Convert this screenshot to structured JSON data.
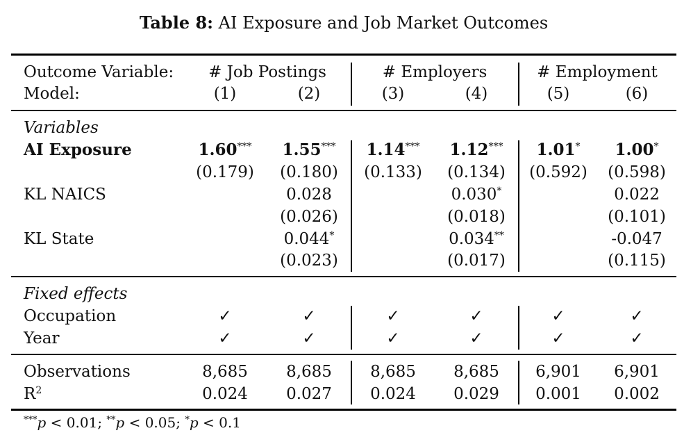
{
  "caption": {
    "label": "Table 8:",
    "text": "AI Exposure and Job Market Outcomes"
  },
  "header": {
    "outcome_label": "Outcome Variable:",
    "model_label": "Model:",
    "groups": [
      "# Job Postings",
      "# Employers",
      "# Employment"
    ],
    "models": [
      "(1)",
      "(2)",
      "(3)",
      "(4)",
      "(5)",
      "(6)"
    ]
  },
  "variables_section": "Variables",
  "rows": {
    "ai_exposure": {
      "label": "AI Exposure",
      "coef": [
        "1.60",
        "1.55",
        "1.14",
        "1.12",
        "1.01",
        "1.00"
      ],
      "stars": [
        "***",
        "***",
        "***",
        "***",
        "*",
        "*"
      ],
      "se": [
        "(0.179)",
        "(0.180)",
        "(0.133)",
        "(0.134)",
        "(0.592)",
        "(0.598)"
      ]
    },
    "kl_naics": {
      "label": "KL NAICS",
      "coef": [
        "",
        "0.028",
        "",
        "0.030",
        "",
        "0.022"
      ],
      "stars": [
        "",
        "",
        "",
        "*",
        "",
        ""
      ],
      "se": [
        "",
        "(0.026)",
        "",
        "(0.018)",
        "",
        "(0.101)"
      ]
    },
    "kl_state": {
      "label": "KL State",
      "coef": [
        "",
        "0.044",
        "",
        "0.034",
        "",
        "-0.047"
      ],
      "stars": [
        "",
        "*",
        "",
        "**",
        "",
        ""
      ],
      "se": [
        "",
        "(0.023)",
        "",
        "(0.017)",
        "",
        "(0.115)"
      ]
    }
  },
  "fixed_effects_section": "Fixed effects",
  "fixed_effects": {
    "occupation": {
      "label": "Occupation",
      "marks": [
        "✓",
        "✓",
        "✓",
        "✓",
        "✓",
        "✓"
      ]
    },
    "year": {
      "label": "Year",
      "marks": [
        "✓",
        "✓",
        "✓",
        "✓",
        "✓",
        "✓"
      ]
    }
  },
  "stats": {
    "observations": {
      "label": "Observations",
      "values": [
        "8,685",
        "8,685",
        "8,685",
        "8,685",
        "6,901",
        "6,901"
      ]
    },
    "r2": {
      "label": "R",
      "label_sup": "2",
      "values": [
        "0.024",
        "0.027",
        "0.024",
        "0.029",
        "0.001",
        "0.002"
      ]
    }
  },
  "footnote": {
    "s1": "***",
    "p1": "p",
    "t1": " < 0.01; ",
    "s2": "**",
    "p2": "p",
    "t2": " < 0.05; ",
    "s3": "*",
    "p3": "p",
    "t3": " < 0.1"
  }
}
